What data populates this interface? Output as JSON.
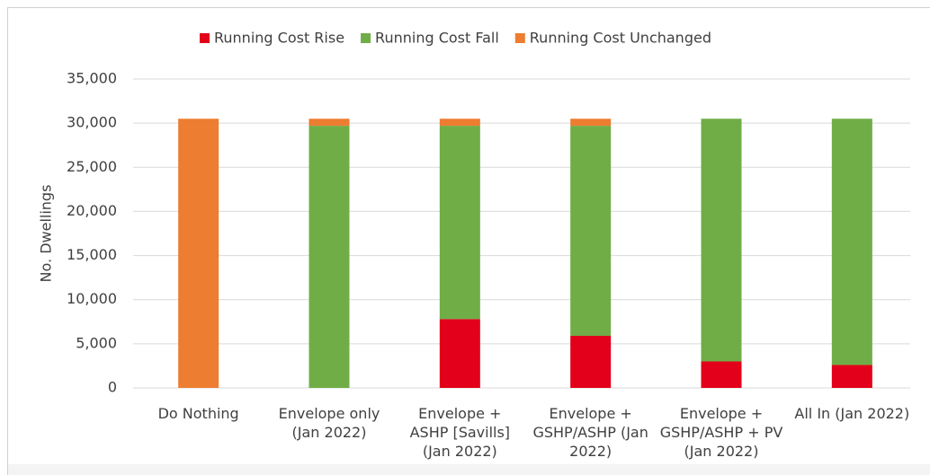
{
  "chart_data": {
    "type": "stacked_bar",
    "y_label": "No. Dwellings",
    "categories": [
      "Do Nothing",
      "Envelope only (Jan 2022)",
      "Envelope + ASHP [Savills] (Jan 2022)",
      "Envelope + GSHP/ASHP (Jan 2022)",
      "Envelope + GSHP/ASHP + PV (Jan 2022)",
      "All In (Jan 2022)"
    ],
    "series": [
      {
        "name": "Running Cost Rise",
        "color": "#e2001a",
        "values": [
          0,
          0,
          7800,
          5900,
          3000,
          2600
        ]
      },
      {
        "name": "Running Cost Fall",
        "color": "#70ad47",
        "values": [
          0,
          29700,
          21900,
          23800,
          27500,
          27900
        ]
      },
      {
        "name": "Running Cost Unchanged",
        "color": "#ed7d31",
        "values": [
          30500,
          800,
          800,
          800,
          0,
          0
        ]
      }
    ],
    "ylim": [
      0,
      35000
    ],
    "yticks": [
      0,
      {
        "value": 5000,
        "label": "5,000"
      },
      {
        "value": 10000,
        "label": "10,000"
      },
      {
        "value": 15000,
        "label": "15,000"
      },
      {
        "value": 20000,
        "label": "20,000"
      },
      {
        "value": 25000,
        "label": "25,000"
      },
      {
        "value": 30000,
        "label": "30,000"
      },
      {
        "value": 35000,
        "label": "35,000"
      }
    ],
    "grid": true,
    "legend": "top"
  }
}
